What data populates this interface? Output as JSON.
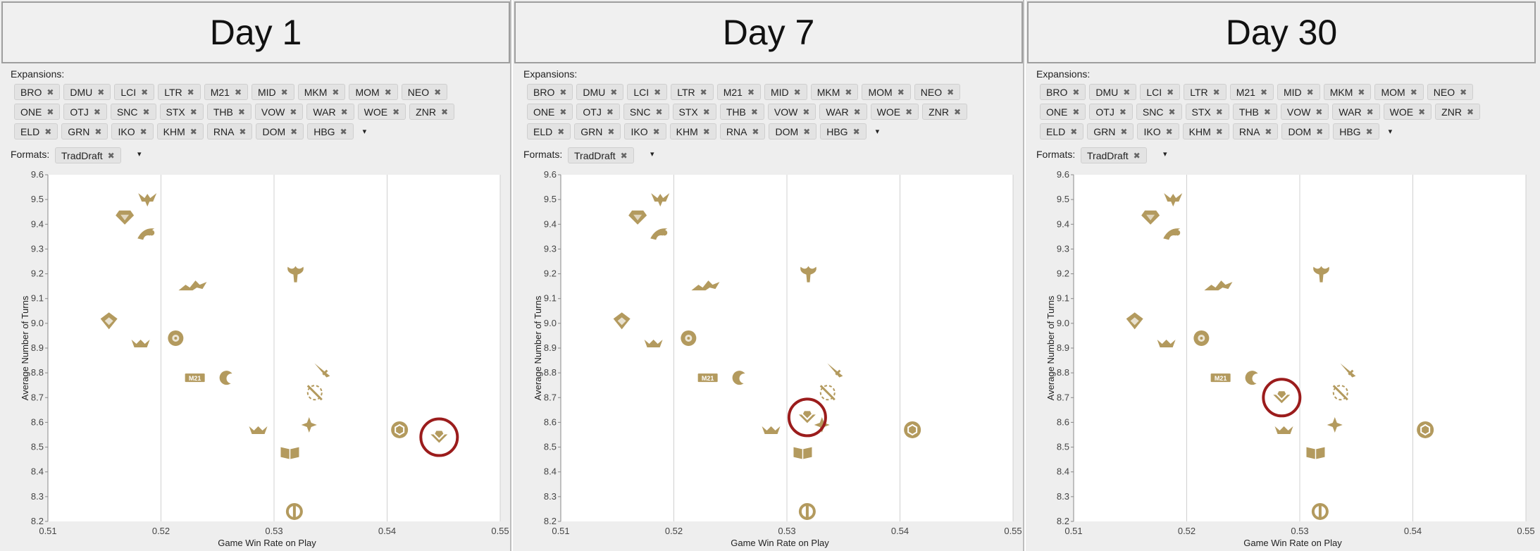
{
  "panels": [
    {
      "title": "Day 1",
      "highlight": "LCI",
      "circle_set": "LCI"
    },
    {
      "title": "Day 7",
      "highlight": "LCI"
    },
    {
      "title": "Day 30",
      "highlight": "LCI"
    }
  ],
  "filters": {
    "expansions_label": "Expansions:",
    "formats_label": "Formats:",
    "expansion_rows": [
      [
        "BRO",
        "DMU",
        "LCI",
        "LTR",
        "M21",
        "MID",
        "MKM",
        "MOM",
        "NEO"
      ],
      [
        "ONE",
        "OTJ",
        "SNC",
        "STX",
        "THB",
        "VOW",
        "WAR",
        "WOE",
        "ZNR"
      ],
      [
        "ELD",
        "GRN",
        "IKO",
        "KHM",
        "RNA",
        "DOM",
        "HBG"
      ]
    ],
    "format_chip": "TradDraft",
    "remove_glyph": "✖",
    "caret_glyph": "▾"
  },
  "colors": {
    "marker": "#b39a5e",
    "highlight_circle": "#9b1c1c",
    "grid": "#d0d0d0",
    "axis": "#888888"
  },
  "chart_data": [
    {
      "type": "scatter",
      "panel": "Day 1",
      "xlabel": "Game Win Rate on Play",
      "ylabel": "Average Number of Turns",
      "xlim": [
        0.51,
        0.55
      ],
      "ylim": [
        8.2,
        9.6
      ],
      "xticks": [
        "0.51",
        "0.52",
        "0.53",
        "0.54",
        "0.55"
      ],
      "yticks": [
        "8.2",
        "8.3",
        "8.4",
        "8.5",
        "8.6",
        "8.7",
        "8.8",
        "8.9",
        "9.0",
        "9.1",
        "9.2",
        "9.3",
        "9.4",
        "9.5",
        "9.6"
      ],
      "grid": true,
      "points": [
        {
          "set": "DMU",
          "x": 0.5188,
          "y": 9.5,
          "icon": "wings"
        },
        {
          "set": "IKO",
          "x": 0.5168,
          "y": 9.43,
          "icon": "gem"
        },
        {
          "set": "ELD",
          "x": 0.5188,
          "y": 9.36,
          "icon": "swirl-wave"
        },
        {
          "set": "KHM",
          "x": 0.5228,
          "y": 9.15,
          "icon": "landscape"
        },
        {
          "set": "WAR",
          "x": 0.5319,
          "y": 9.2,
          "icon": "axe"
        },
        {
          "set": "GRN",
          "x": 0.5154,
          "y": 9.01,
          "icon": "shield"
        },
        {
          "set": "RNA",
          "x": 0.5182,
          "y": 8.92,
          "icon": "crown"
        },
        {
          "set": "ZNR",
          "x": 0.5213,
          "y": 8.94,
          "icon": "flower"
        },
        {
          "set": "STX",
          "x": 0.5342,
          "y": 8.81,
          "icon": "dagger"
        },
        {
          "set": "M21",
          "x": 0.523,
          "y": 8.78,
          "icon": "m21"
        },
        {
          "set": "THB",
          "x": 0.5258,
          "y": 8.78,
          "icon": "crescent"
        },
        {
          "set": "VOW",
          "x": 0.5336,
          "y": 8.72,
          "icon": "compass"
        },
        {
          "set": "MKM",
          "x": 0.5331,
          "y": 8.59,
          "icon": "spark"
        },
        {
          "set": "MOM",
          "x": 0.5286,
          "y": 8.57,
          "icon": "crown"
        },
        {
          "set": "NEO",
          "x": 0.5411,
          "y": 8.57,
          "icon": "hexagon-coin"
        },
        {
          "set": "LCI",
          "x": 0.5446,
          "y": 8.54,
          "icon": "chevron-gem"
        },
        {
          "set": "SNC",
          "x": 0.5314,
          "y": 8.48,
          "icon": "book"
        },
        {
          "set": "OTJ",
          "x": 0.5318,
          "y": 8.24,
          "icon": "ring"
        }
      ]
    },
    {
      "type": "scatter",
      "panel": "Day 7",
      "xlabel": "Game Win Rate on Play",
      "ylabel": "Average Number of Turns",
      "xlim": [
        0.51,
        0.55
      ],
      "ylim": [
        8.2,
        9.6
      ],
      "xticks": [
        "0.51",
        "0.52",
        "0.53",
        "0.54",
        "0.55"
      ],
      "yticks": [
        "8.2",
        "8.3",
        "8.4",
        "8.5",
        "8.6",
        "8.7",
        "8.8",
        "8.9",
        "9.0",
        "9.1",
        "9.2",
        "9.3",
        "9.4",
        "9.5",
        "9.6"
      ],
      "grid": true,
      "points": [
        {
          "set": "DMU",
          "x": 0.5188,
          "y": 9.5,
          "icon": "wings"
        },
        {
          "set": "IKO",
          "x": 0.5168,
          "y": 9.43,
          "icon": "gem"
        },
        {
          "set": "ELD",
          "x": 0.5188,
          "y": 9.36,
          "icon": "swirl-wave"
        },
        {
          "set": "KHM",
          "x": 0.5228,
          "y": 9.15,
          "icon": "landscape"
        },
        {
          "set": "WAR",
          "x": 0.5319,
          "y": 9.2,
          "icon": "axe"
        },
        {
          "set": "GRN",
          "x": 0.5154,
          "y": 9.01,
          "icon": "shield"
        },
        {
          "set": "RNA",
          "x": 0.5182,
          "y": 8.92,
          "icon": "crown"
        },
        {
          "set": "ZNR",
          "x": 0.5213,
          "y": 8.94,
          "icon": "flower"
        },
        {
          "set": "STX",
          "x": 0.5342,
          "y": 8.81,
          "icon": "dagger"
        },
        {
          "set": "M21",
          "x": 0.523,
          "y": 8.78,
          "icon": "m21"
        },
        {
          "set": "THB",
          "x": 0.5258,
          "y": 8.78,
          "icon": "crescent"
        },
        {
          "set": "VOW",
          "x": 0.5336,
          "y": 8.72,
          "icon": "compass"
        },
        {
          "set": "MKM",
          "x": 0.5331,
          "y": 8.59,
          "icon": "spark"
        },
        {
          "set": "MOM",
          "x": 0.5286,
          "y": 8.57,
          "icon": "crown"
        },
        {
          "set": "NEO",
          "x": 0.5411,
          "y": 8.57,
          "icon": "hexagon-coin"
        },
        {
          "set": "LCI",
          "x": 0.5318,
          "y": 8.62,
          "icon": "chevron-gem"
        },
        {
          "set": "SNC",
          "x": 0.5314,
          "y": 8.48,
          "icon": "book"
        },
        {
          "set": "OTJ",
          "x": 0.5318,
          "y": 8.24,
          "icon": "ring"
        }
      ]
    },
    {
      "type": "scatter",
      "panel": "Day 30",
      "xlabel": "Game Win Rate on Play",
      "ylabel": "Average Number of Turns",
      "xlim": [
        0.51,
        0.55
      ],
      "ylim": [
        8.2,
        9.6
      ],
      "xticks": [
        "0.51",
        "0.52",
        "0.53",
        "0.54",
        "0.55"
      ],
      "yticks": [
        "8.2",
        "8.3",
        "8.4",
        "8.5",
        "8.6",
        "8.7",
        "8.8",
        "8.9",
        "9.0",
        "9.1",
        "9.2",
        "9.3",
        "9.4",
        "9.5",
        "9.6"
      ],
      "grid": true,
      "points": [
        {
          "set": "DMU",
          "x": 0.5188,
          "y": 9.5,
          "icon": "wings"
        },
        {
          "set": "IKO",
          "x": 0.5168,
          "y": 9.43,
          "icon": "gem"
        },
        {
          "set": "ELD",
          "x": 0.5188,
          "y": 9.36,
          "icon": "swirl-wave"
        },
        {
          "set": "KHM",
          "x": 0.5228,
          "y": 9.15,
          "icon": "landscape"
        },
        {
          "set": "WAR",
          "x": 0.5319,
          "y": 9.2,
          "icon": "axe"
        },
        {
          "set": "GRN",
          "x": 0.5154,
          "y": 9.01,
          "icon": "shield"
        },
        {
          "set": "RNA",
          "x": 0.5182,
          "y": 8.92,
          "icon": "crown"
        },
        {
          "set": "ZNR",
          "x": 0.5213,
          "y": 8.94,
          "icon": "flower"
        },
        {
          "set": "STX",
          "x": 0.5342,
          "y": 8.81,
          "icon": "dagger"
        },
        {
          "set": "M21",
          "x": 0.523,
          "y": 8.78,
          "icon": "m21"
        },
        {
          "set": "THB",
          "x": 0.5258,
          "y": 8.78,
          "icon": "crescent"
        },
        {
          "set": "VOW",
          "x": 0.5336,
          "y": 8.72,
          "icon": "compass"
        },
        {
          "set": "MKM",
          "x": 0.5331,
          "y": 8.59,
          "icon": "spark"
        },
        {
          "set": "MOM",
          "x": 0.5286,
          "y": 8.57,
          "icon": "crown"
        },
        {
          "set": "NEO",
          "x": 0.5411,
          "y": 8.57,
          "icon": "hexagon-coin"
        },
        {
          "set": "LCI",
          "x": 0.5284,
          "y": 8.7,
          "icon": "chevron-gem"
        },
        {
          "set": "SNC",
          "x": 0.5314,
          "y": 8.48,
          "icon": "book"
        },
        {
          "set": "OTJ",
          "x": 0.5318,
          "y": 8.24,
          "icon": "ring"
        }
      ]
    }
  ]
}
